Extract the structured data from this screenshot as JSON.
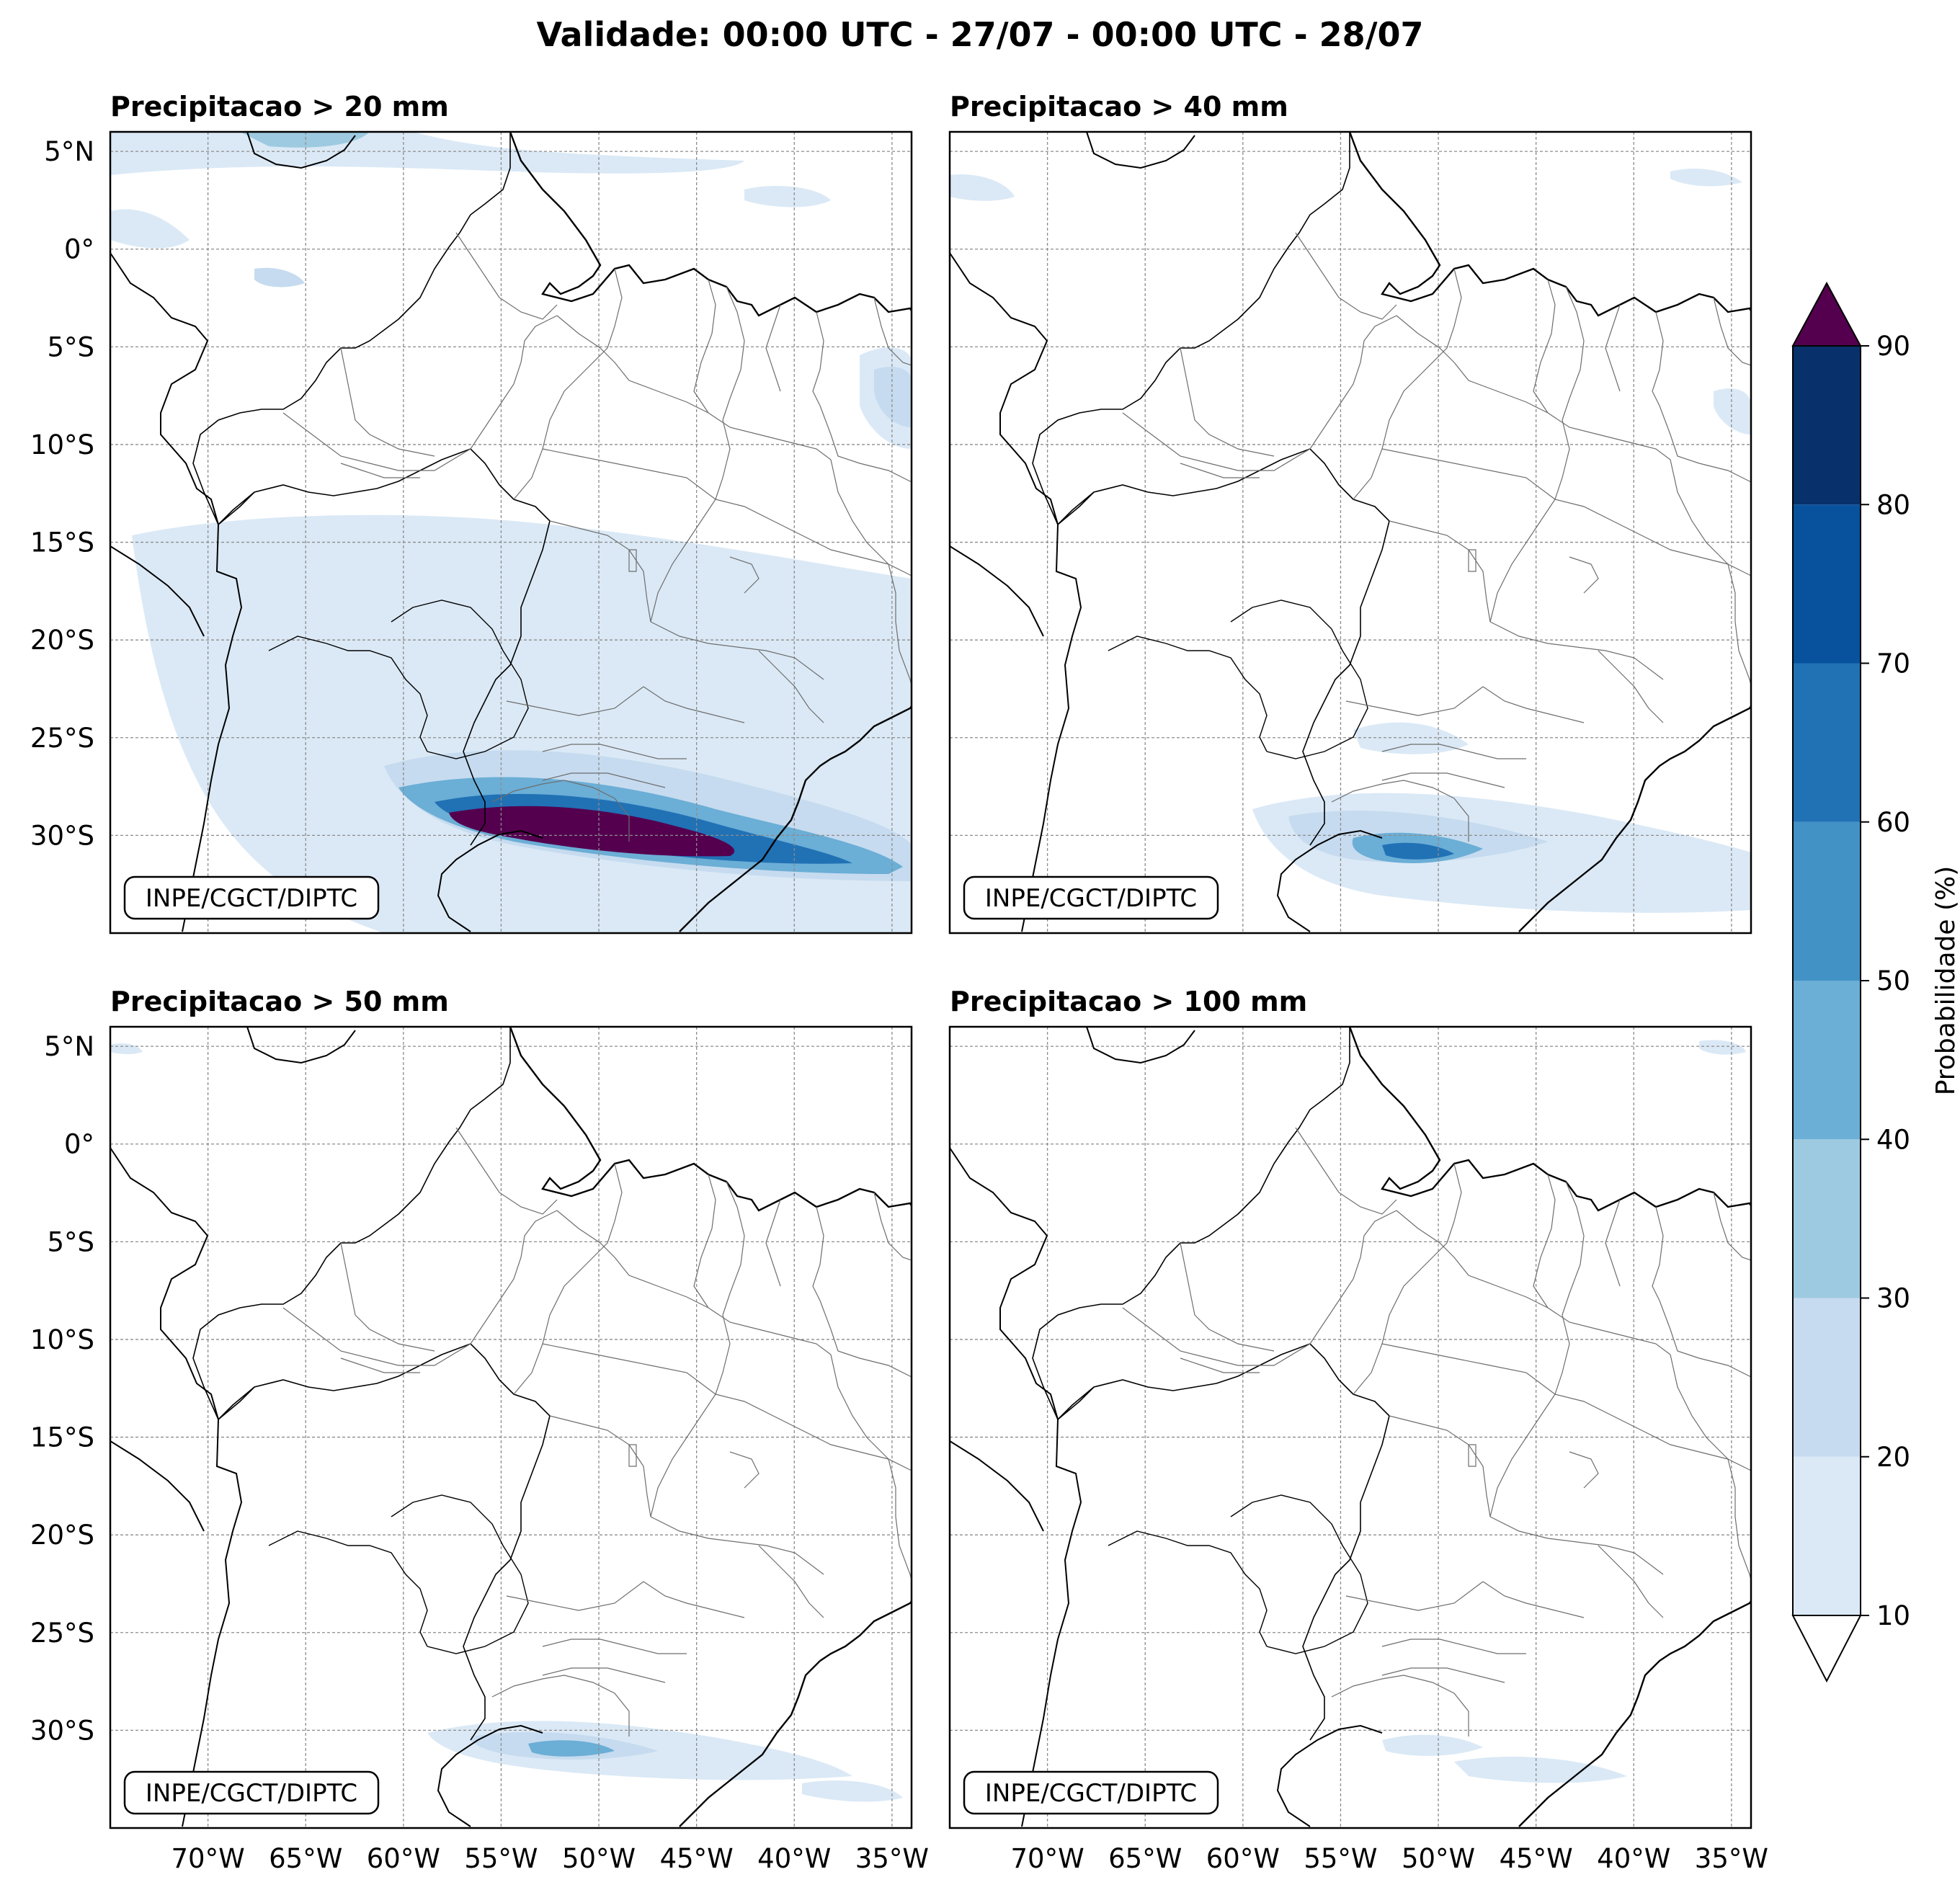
{
  "title": "Validade: 00:00 UTC - 27/07 - 00:00 UTC - 28/07",
  "panels": [
    {
      "title": "Precipitacao > 20 mm",
      "credit": "INPE/CGCT/DIPTC"
    },
    {
      "title": "Precipitacao > 40 mm",
      "credit": "INPE/CGCT/DIPTC"
    },
    {
      "title": "Precipitacao > 50 mm",
      "credit": "INPE/CGCT/DIPTC"
    },
    {
      "title": "Precipitacao > 100 mm",
      "credit": "INPE/CGCT/DIPTC"
    }
  ],
  "lat_ticks": [
    "5°N",
    "0°",
    "5°S",
    "10°S",
    "15°S",
    "20°S",
    "25°S",
    "30°S"
  ],
  "lon_ticks": [
    "70°W",
    "65°W",
    "60°W",
    "55°W",
    "50°W",
    "45°W",
    "40°W",
    "35°W"
  ],
  "map_extent": {
    "lon": [
      -75,
      -34
    ],
    "lat": [
      -35,
      6
    ]
  },
  "colorbar": {
    "label": "Probabilidade (%)",
    "ticks": [
      "10",
      "20",
      "30",
      "40",
      "50",
      "60",
      "70",
      "80",
      "90"
    ],
    "colors": [
      "#dbe9f6",
      "#c6dbef",
      "#9ecae1",
      "#6baed6",
      "#4292c6",
      "#2171b5",
      "#08519c",
      "#08306b"
    ],
    "over_color": "#54004f",
    "under_color": "#ffffff"
  }
}
